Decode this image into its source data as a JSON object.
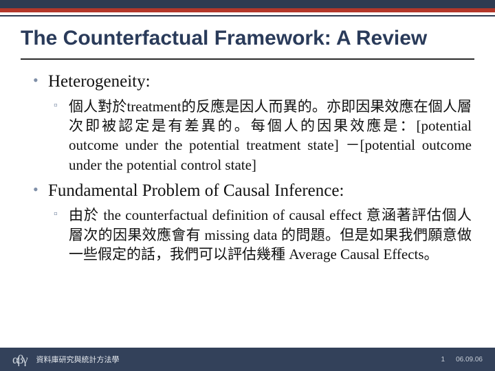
{
  "colors": {
    "band_dark": "#2e3b51",
    "band_accent": "#b33729",
    "title_color": "#2a3b5a",
    "bullet1_color": "#7f8fa8",
    "bullet2_color": "#7f8fa8",
    "footer_bg": "#33415a",
    "footer_fg": "#e8ecf1"
  },
  "title": "The Counterfactual Framework: A Review",
  "item1_heading": "Heterogeneity:",
  "item1_body": "個人對於treatment的反應是因人而異的。亦即因果效應在個人層次即被認定是有差異的。每個人的因果效應是：[potential outcome under the potential treatment state] －[potential outcome under the potential control state]",
  "item2_heading": "Fundamental Problem of Causal Inference:",
  "item2_body": "由於 the counterfactual definition of causal effect 意涵著評估個人層次的因果效應會有 missing data 的問題。但是如果我們願意做一些假定的話，我們可以評估幾種 Average Causal Effects。",
  "footer": {
    "logo": "αβγ",
    "course": "資料庫研究與統計方法學",
    "page": "1",
    "date": "06.09.06"
  }
}
